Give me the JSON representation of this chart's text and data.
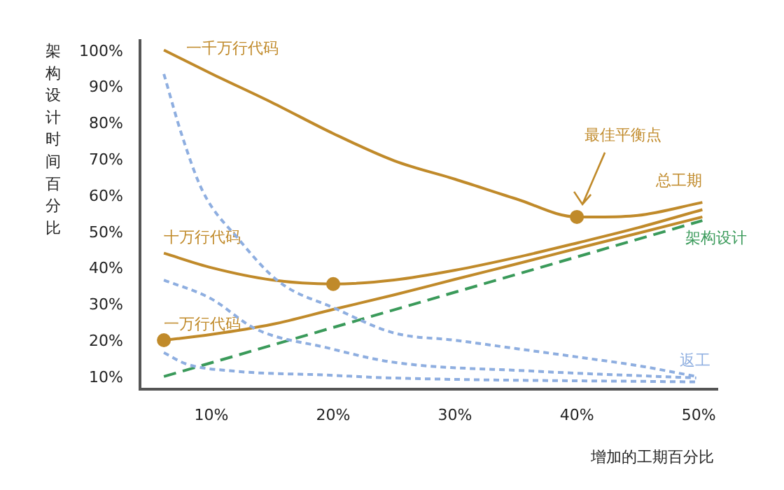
{
  "chart_data": {
    "type": "line",
    "xlabel": "增加的工期百分比",
    "ylabel": "架构设计时间百分比",
    "xlim": [
      4.14,
      51.6
    ],
    "ylim": [
      6.5,
      103
    ],
    "xticks": [
      {
        "value": 10,
        "label": "10%"
      },
      {
        "value": 20,
        "label": "20%"
      },
      {
        "value": 30,
        "label": "30%"
      },
      {
        "value": 40,
        "label": "40%"
      },
      {
        "value": 50,
        "label": "50%"
      }
    ],
    "yticks": [
      {
        "value": 10,
        "label": "10%"
      },
      {
        "value": 20,
        "label": "20%"
      },
      {
        "value": 30,
        "label": "30%"
      },
      {
        "value": 40,
        "label": "40%"
      },
      {
        "value": 50,
        "label": "50%"
      },
      {
        "value": 60,
        "label": "60%"
      },
      {
        "value": 70,
        "label": "70%"
      },
      {
        "value": 80,
        "label": "80%"
      },
      {
        "value": 90,
        "label": "90%"
      },
      {
        "value": 100,
        "label": "100%"
      }
    ],
    "grid": false,
    "series": [
      {
        "name": "一千万行代码",
        "color": "#c08a2a",
        "line_style": "solid",
        "x": [
          6.1,
          10,
          15,
          20,
          25,
          30,
          35,
          40,
          45,
          50.3
        ],
        "values": [
          100,
          93.5,
          85.5,
          77,
          69.5,
          64.4,
          59,
          54,
          54.4,
          58
        ]
      },
      {
        "name": "十万行代码",
        "color": "#c08a2a",
        "line_style": "solid",
        "x": [
          6.1,
          10,
          15,
          20,
          25,
          30,
          35,
          40,
          45,
          50.3
        ],
        "values": [
          44,
          40,
          36.6,
          35.5,
          36.6,
          39.3,
          42.8,
          46.8,
          51,
          56
        ]
      },
      {
        "name": "一万行代码",
        "color": "#c08a2a",
        "line_style": "solid",
        "x": [
          6.1,
          10,
          15,
          20,
          25,
          30,
          35,
          40,
          45,
          50.3
        ],
        "values": [
          20,
          21.6,
          24.4,
          28.5,
          32.5,
          36.8,
          41,
          45.3,
          49.5,
          54
        ]
      },
      {
        "name": "架构设计",
        "color": "#3a9a5a",
        "line_style": "dashed",
        "x": [
          6.1,
          50.3
        ],
        "values": [
          10,
          53
        ]
      },
      {
        "name": "返工",
        "color": "#8eaee0",
        "line_style": "dotted",
        "x": [
          6.1,
          7.6,
          9.3,
          12.2,
          15.6,
          20,
          25,
          30,
          35,
          40,
          45,
          49.8
        ],
        "values": [
          93.4,
          76.3,
          61,
          48,
          36,
          29,
          22,
          20,
          17.7,
          15.4,
          13,
          10
        ]
      },
      {
        "color": "#8eaee0",
        "line_style": "dotted",
        "x": [
          6.1,
          9.9,
          13.7,
          19.4,
          24.8,
          36.3,
          49.8
        ],
        "values": [
          36.6,
          31.6,
          23,
          18,
          14,
          11.5,
          9.6
        ]
      },
      {
        "color": "#8eaee0",
        "line_style": "dotted",
        "x": [
          6.1,
          7.9,
          11.8,
          19.4,
          24.8,
          49.8
        ],
        "values": [
          16.6,
          13.5,
          11.5,
          10.4,
          9.6,
          8.5
        ]
      },
      {
        "type": "scatter",
        "marker": "circle",
        "color": "#c08a2a",
        "x": [
          6.1,
          20,
          40
        ],
        "values": [
          20,
          35.5,
          54
        ]
      }
    ],
    "annotations": [
      {
        "text": "总工期",
        "x": 50.3,
        "y": 58
      },
      "最佳平衡点"
    ]
  }
}
